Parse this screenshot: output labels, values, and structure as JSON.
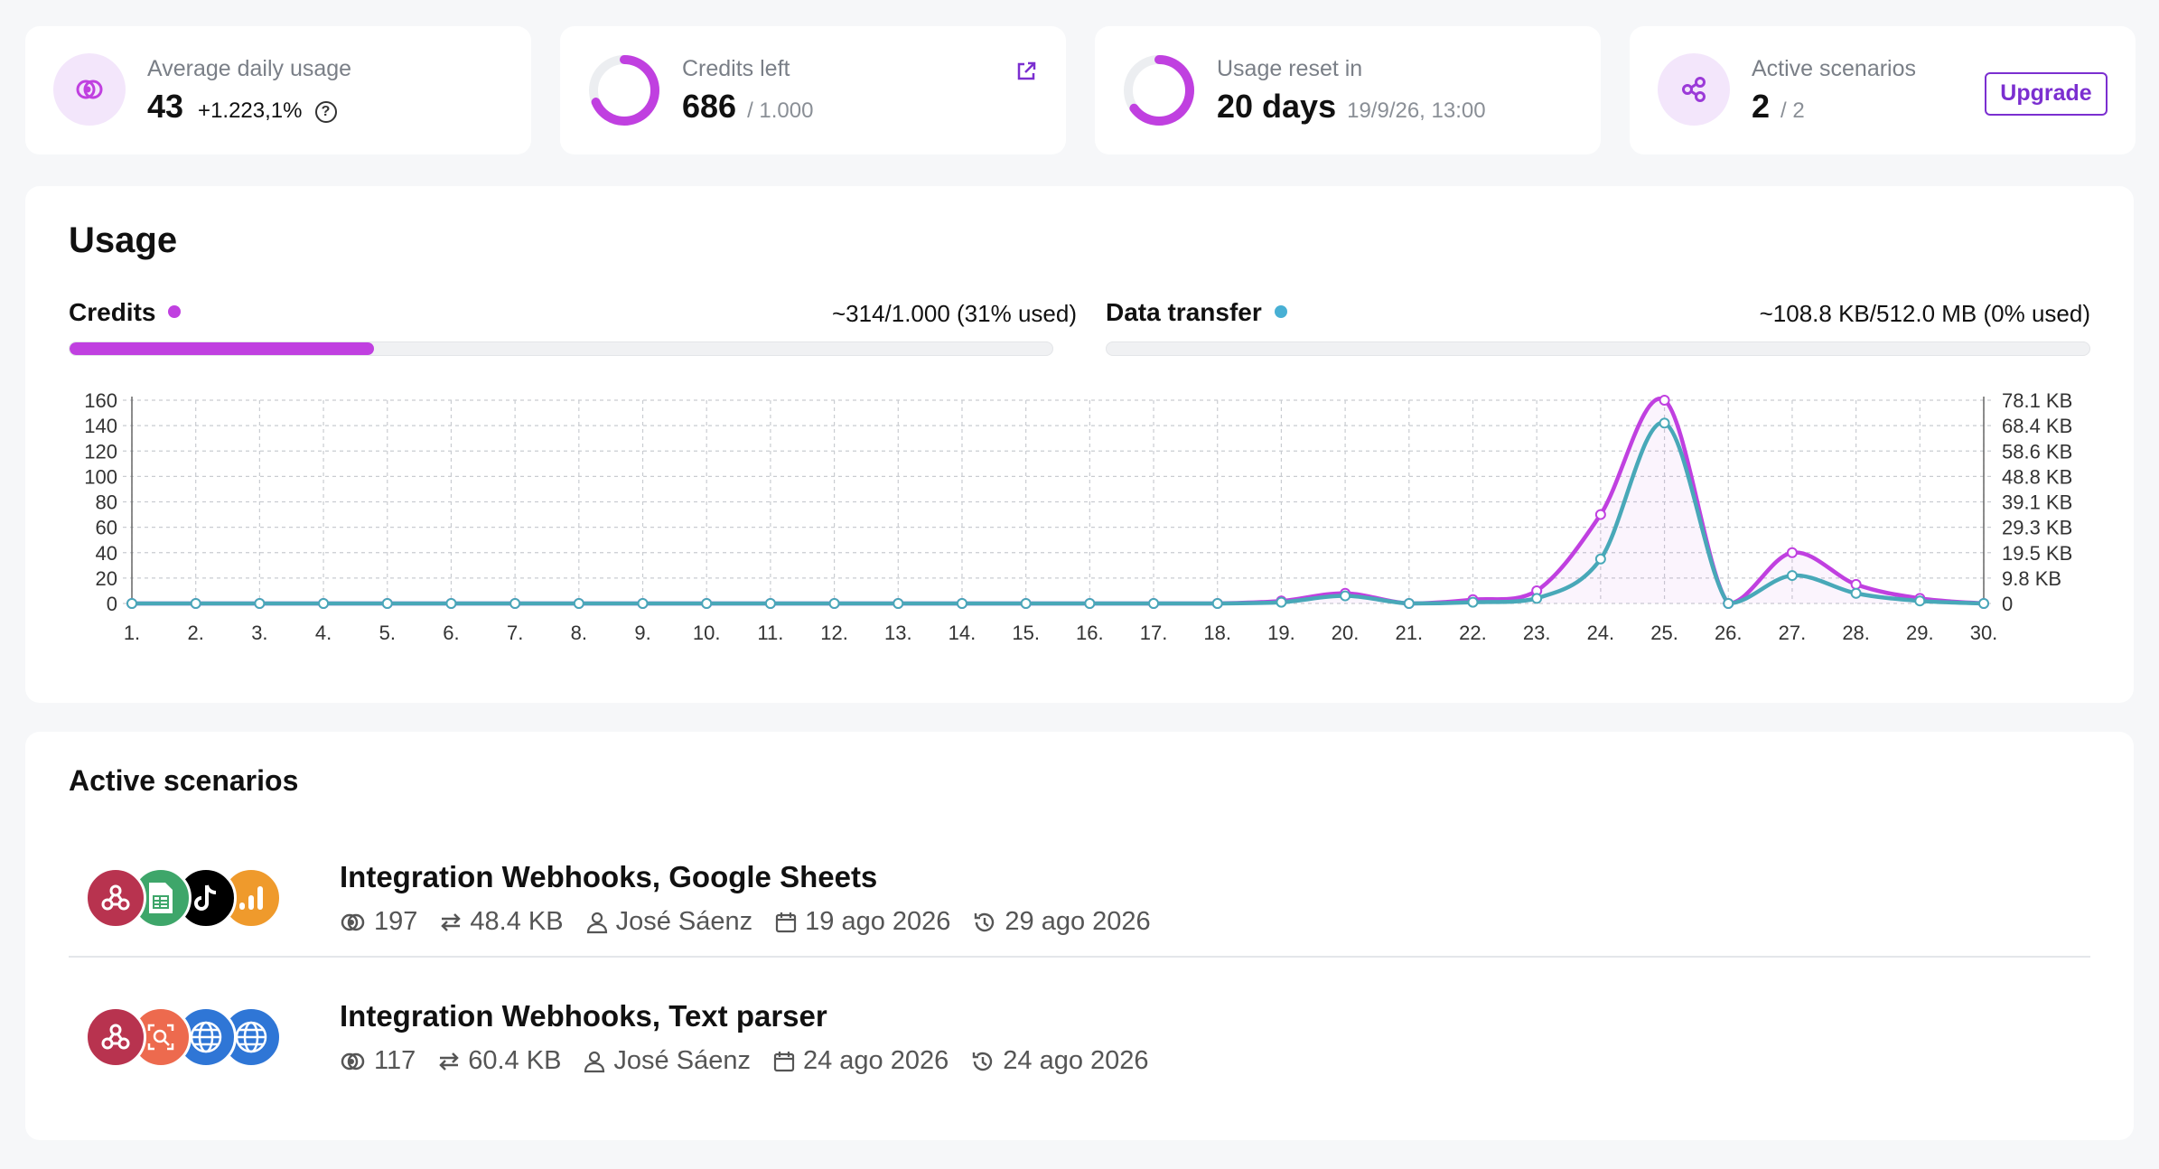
{
  "stats": {
    "avg": {
      "label": "Average daily usage",
      "value": "43",
      "change": "+1.223,1%",
      "help": "?"
    },
    "credits": {
      "label": "Credits left",
      "value": "686",
      "total": "/ 1.000",
      "fraction_left": 0.686
    },
    "reset": {
      "label": "Usage reset in",
      "value": "20 days",
      "date": "19/9/26, 13:00",
      "fraction": 0.65
    },
    "scenarios": {
      "label": "Active scenarios",
      "value": "2",
      "total": "/ 2",
      "button": "Upgrade"
    }
  },
  "usage": {
    "title": "Usage",
    "credits": {
      "label": "Credits",
      "value": "~314/1.000 (31% used)",
      "fraction": 0.31,
      "color": "#c040e0"
    },
    "transfer": {
      "label": "Data transfer",
      "value": "~108.8 KB/512.0 MB (0% used)",
      "fraction": 0.0,
      "color": "#48b0d4"
    }
  },
  "chart_data": {
    "type": "line",
    "x": [
      "1.",
      "2.",
      "3.",
      "4.",
      "5.",
      "6.",
      "7.",
      "8.",
      "9.",
      "10.",
      "11.",
      "12.",
      "13.",
      "14.",
      "15.",
      "16.",
      "17.",
      "18.",
      "19.",
      "20.",
      "21.",
      "22.",
      "23.",
      "24.",
      "25.",
      "26.",
      "27.",
      "28.",
      "29.",
      "30."
    ],
    "left_ticks": [
      "0",
      "20",
      "40",
      "60",
      "80",
      "100",
      "120",
      "140",
      "160"
    ],
    "right_ticks": [
      "0",
      "9.8 KB",
      "19.5 KB",
      "29.3 KB",
      "39.1 KB",
      "48.8 KB",
      "58.6 KB",
      "68.4 KB",
      "78.1 KB"
    ],
    "ylim": [
      0,
      160
    ],
    "grid": true,
    "series": [
      {
        "key": "credits",
        "color": "#c040e0",
        "values": [
          0,
          0,
          0,
          0,
          0,
          0,
          0,
          0,
          0,
          0,
          0,
          0,
          0,
          0,
          0,
          0,
          0,
          0,
          2,
          8,
          0,
          3,
          10,
          70,
          160,
          0,
          40,
          15,
          4,
          0
        ]
      },
      {
        "key": "transfer",
        "color": "#48a8b8",
        "values": [
          0,
          0,
          0,
          0,
          0,
          0,
          0,
          0,
          0,
          0,
          0,
          0,
          0,
          0,
          0,
          0,
          0,
          0,
          1,
          6,
          0,
          1,
          4,
          35,
          142,
          0,
          22,
          8,
          2,
          0
        ]
      }
    ]
  },
  "scenarios": {
    "title": "Active scenarios",
    "rows": [
      {
        "name": "Integration Webhooks, Google Sheets",
        "ops": "197",
        "transfer": "48.4 KB",
        "user": "José Sáenz",
        "created": "19 ago 2026",
        "last_run": "29 ago 2026",
        "apps": [
          {
            "icon": "webhooks-icon",
            "color": "#b8334f"
          },
          {
            "icon": "google-sheets-icon",
            "color": "#3ea66a"
          },
          {
            "icon": "tiktok-icon",
            "color": "#000000"
          },
          {
            "icon": "analytics-icon",
            "color": "#ef9a2c"
          }
        ]
      },
      {
        "name": "Integration Webhooks, Text parser",
        "ops": "117",
        "transfer": "60.4 KB",
        "user": "José Sáenz",
        "created": "24 ago 2026",
        "last_run": "24 ago 2026",
        "apps": [
          {
            "icon": "webhooks-icon",
            "color": "#b8334f"
          },
          {
            "icon": "text-parser-icon",
            "color": "#ed6a4e"
          },
          {
            "icon": "http-globe-icon",
            "color": "#2f76d6"
          },
          {
            "icon": "http-globe-icon",
            "color": "#2f76d6"
          }
        ]
      }
    ]
  }
}
